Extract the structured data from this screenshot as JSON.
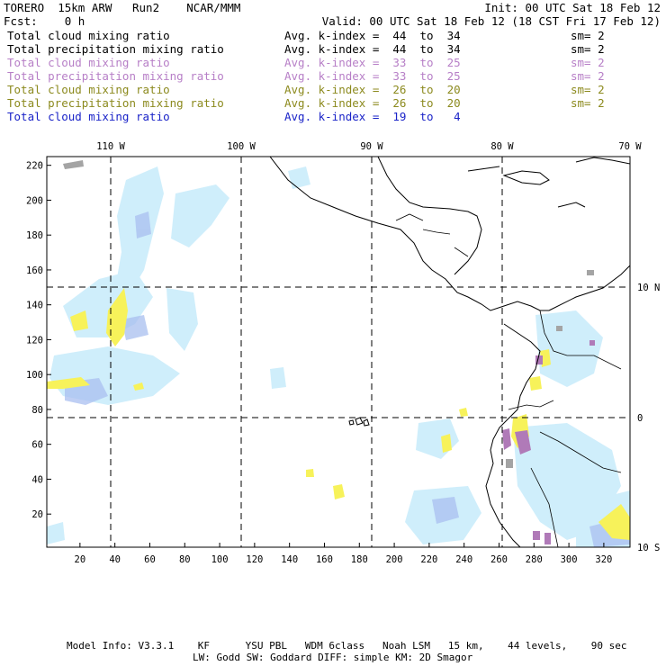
{
  "header": {
    "model": "TORERO  15km ARW   Run2    NCAR/MMM",
    "init": "Init: 00 UTC Sat 18 Feb 12",
    "fcst": "Fcst:    0 h",
    "valid": "Valid: 00 UTC Sat 18 Feb 12 (18 CST Fri 17 Feb 12)"
  },
  "legend": [
    {
      "field": "Total cloud mixing ratio",
      "kindex": "Avg. k-index =  44  to  34",
      "sm": "sm= 2",
      "color": "#000000"
    },
    {
      "field": "Total precipitation mixing ratio",
      "kindex": "Avg. k-index =  44  to  34",
      "sm": "sm= 2",
      "color": "#000000"
    },
    {
      "field": "Total cloud mixing ratio",
      "kindex": "Avg. k-index =  33  to  25",
      "sm": "sm= 2",
      "color": "#b77fc7"
    },
    {
      "field": "Total precipitation mixing ratio",
      "kindex": "Avg. k-index =  33  to  25",
      "sm": "sm= 2",
      "color": "#b77fc7"
    },
    {
      "field": "Total cloud mixing ratio",
      "kindex": "Avg. k-index =  26  to  20",
      "sm": "sm= 2",
      "color": "#8c8a1e"
    },
    {
      "field": "Total precipitation mixing ratio",
      "kindex": "Avg. k-index =  26  to  20",
      "sm": "sm= 2",
      "color": "#8c8a1e"
    },
    {
      "field": "Total cloud mixing ratio",
      "kindex": "Avg. k-index =  19  to   4",
      "sm": "",
      "color": "#1a23c8"
    }
  ],
  "map": {
    "lon_labels": [
      "110 W",
      "100 W",
      "90 W",
      "80 W",
      "70 W"
    ],
    "lat_labels": [
      "10 N",
      "0",
      "10 S"
    ],
    "x_ticks": [
      "20",
      "40",
      "60",
      "80",
      "100",
      "120",
      "140",
      "160",
      "180",
      "200",
      "220",
      "240",
      "260",
      "280",
      "300",
      "320"
    ],
    "y_ticks": [
      "220",
      "200",
      "180",
      "160",
      "140",
      "120",
      "100",
      "80",
      "60",
      "40",
      "20"
    ],
    "x_range": [
      1,
      335
    ],
    "y_range": [
      1,
      225
    ],
    "colors": {
      "cloud_light": "#cfeefb",
      "cloud_mid": "#b9ddf3",
      "cloud_blue": "#a9bff0",
      "yellow": "#f7f25a",
      "purple": "#b07ab8",
      "gray": "#a4a4a4"
    }
  },
  "footer": {
    "line1": "Model Info: V3.3.1    KF      YSU PBL   WDM 6class   Noah LSM   15 km,    44 levels,    90 sec",
    "line2": "LW: Godd SW: Goddard DIFF: simple KM: 2D Smagor"
  }
}
